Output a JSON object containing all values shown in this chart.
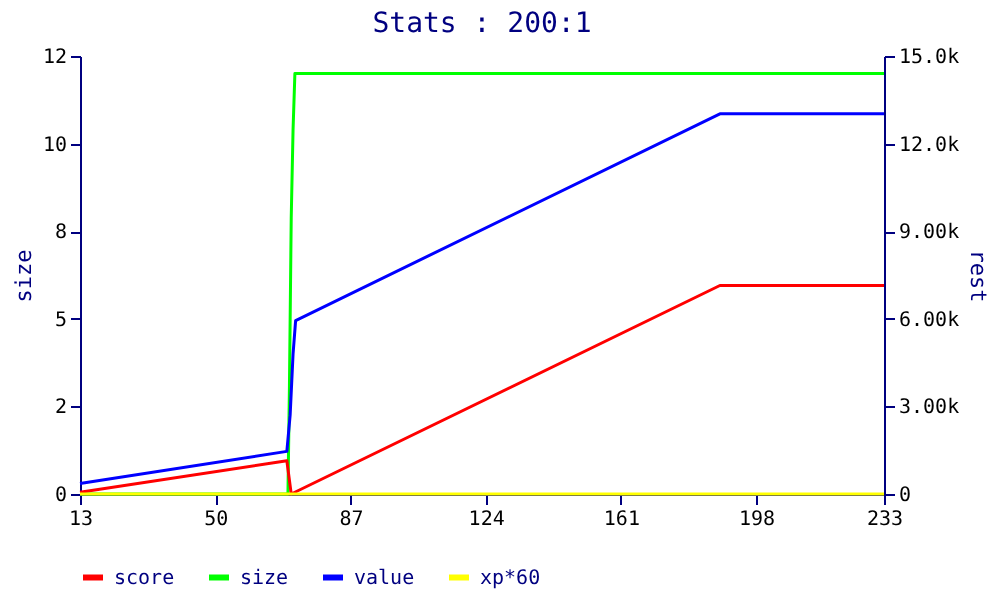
{
  "chart_data": {
    "type": "line",
    "title": "Stats : 200:1",
    "ylabel": "size",
    "y2label": "rest",
    "xlim": [
      13,
      233
    ],
    "xticks": [
      13,
      50,
      87,
      124,
      161,
      198,
      233
    ],
    "ylim": [
      0,
      12.5
    ],
    "yticks": [
      0,
      {
        "value": 2.5,
        "label": "2"
      },
      5,
      {
        "value": 7.5,
        "label": "8"
      },
      10,
      {
        "value": 12.5,
        "label": "12"
      }
    ],
    "y2lim": [
      0,
      15000
    ],
    "y2ticks": [
      0,
      {
        "value": 3000,
        "label": "3.00k"
      },
      {
        "value": 6000,
        "label": "6.00k"
      },
      {
        "value": 9000,
        "label": "9.00k"
      },
      {
        "value": 12000,
        "label": "12.0k"
      },
      {
        "value": 15000,
        "label": "15.0k"
      }
    ],
    "legend": "bottom",
    "grid": false,
    "series": [
      {
        "name": "score",
        "color": "#ff0000",
        "axis": "y2",
        "x": [
          13,
          69.6,
          70.8,
          188.1,
          233
        ],
        "values": [
          60,
          1140,
          0,
          7140,
          7140
        ]
      },
      {
        "name": "size",
        "color": "#00ff00",
        "x": [
          13,
          69.9,
          70.3,
          70.8,
          71.3,
          71.8,
          233
        ],
        "values": [
          0,
          0,
          3.0,
          7.9,
          10.4,
          12.0,
          12.0
        ]
      },
      {
        "name": "value",
        "color": "#0000ff",
        "axis": "y2",
        "x": [
          13,
          69.6,
          70.5,
          71.3,
          72.0,
          188.1,
          233
        ],
        "values": [
          360,
          1460,
          2700,
          4800,
          5940,
          13020,
          13020
        ]
      },
      {
        "name": "xp*60",
        "color": "#ffff00",
        "axis": "y2",
        "x": [
          13,
          233
        ],
        "values": [
          0,
          0
        ]
      }
    ]
  }
}
